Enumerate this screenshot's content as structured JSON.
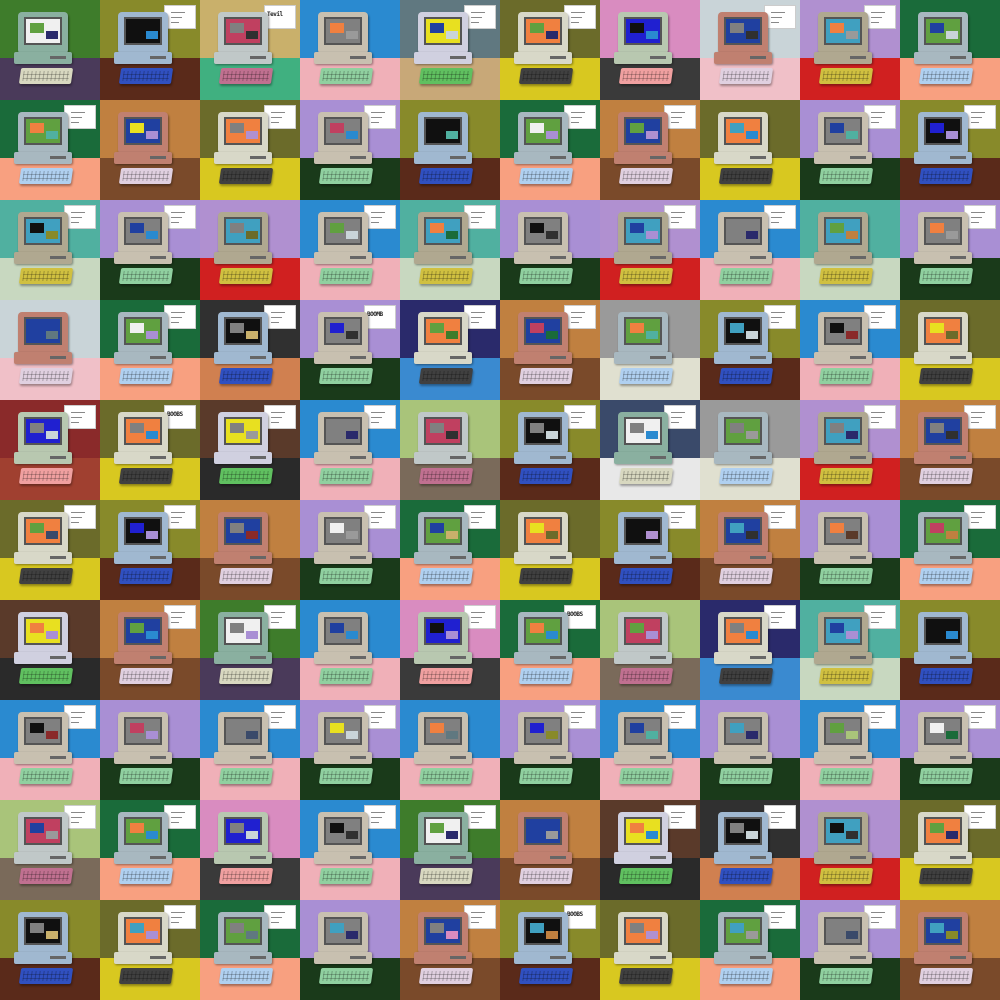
{
  "grid": {
    "rows": 10,
    "columns": 10
  },
  "palette": {
    "walls": [
      "#6b6b2a",
      "#a9c47a",
      "#9a9a9a",
      "#d98cc0",
      "#a98fd4",
      "#3e7c2b",
      "#c9d4d8",
      "#5a3a2a",
      "#888a2a",
      "#b090d0",
      "#2a2a6b",
      "#c9b06b",
      "#1a6b3a",
      "#8a2a2a",
      "#2a8ad0",
      "#3a4a6a",
      "#c08040",
      "#607880",
      "#303030",
      "#50b0a0"
    ],
    "desks": [
      "#e8e8e8",
      "#7a4a2a",
      "#c8a878",
      "#d08050",
      "#c8d8c0",
      "#d8c820",
      "#7a6a5a",
      "#e0e0d0",
      "#3a3a3a",
      "#1a3a1a",
      "#4a3a5a",
      "#f0c0c8",
      "#2a2a2a",
      "#5a2a1a",
      "#d02020",
      "#3a8ad0",
      "#40b080",
      "#f8a080",
      "#a04030",
      "#f0b0b8"
    ],
    "bodies": [
      "#d8d8c8",
      "#c0c8c8",
      "#a8b8c0",
      "#b8c8b0",
      "#c8c0b0",
      "#8ab0a0",
      "#c08070",
      "#d0d0e0",
      "#a0b8d0",
      "#b0a890"
    ],
    "screens": [
      "#f0f0f0",
      "#2040a0",
      "#e8e020",
      "#101010",
      "#40a0c0",
      "#f08040",
      "#c04060",
      "#60a040",
      "#2020d0",
      "#808080"
    ],
    "keyboards": [
      "#d8d8c0",
      "#e0d0e0",
      "#60c060",
      "#3050c0",
      "#d0c040",
      "#404040",
      "#c07090",
      "#b0d0f0",
      "#f0a0a0",
      "#90d0a0"
    ]
  },
  "notes": {
    "tile_0_2": "Tevil",
    "tile_3_3": "BOOMB",
    "tile_4_1": "BOOBS",
    "tile_6_5": "BOOBS",
    "tile_9_5": "BOOBS"
  }
}
